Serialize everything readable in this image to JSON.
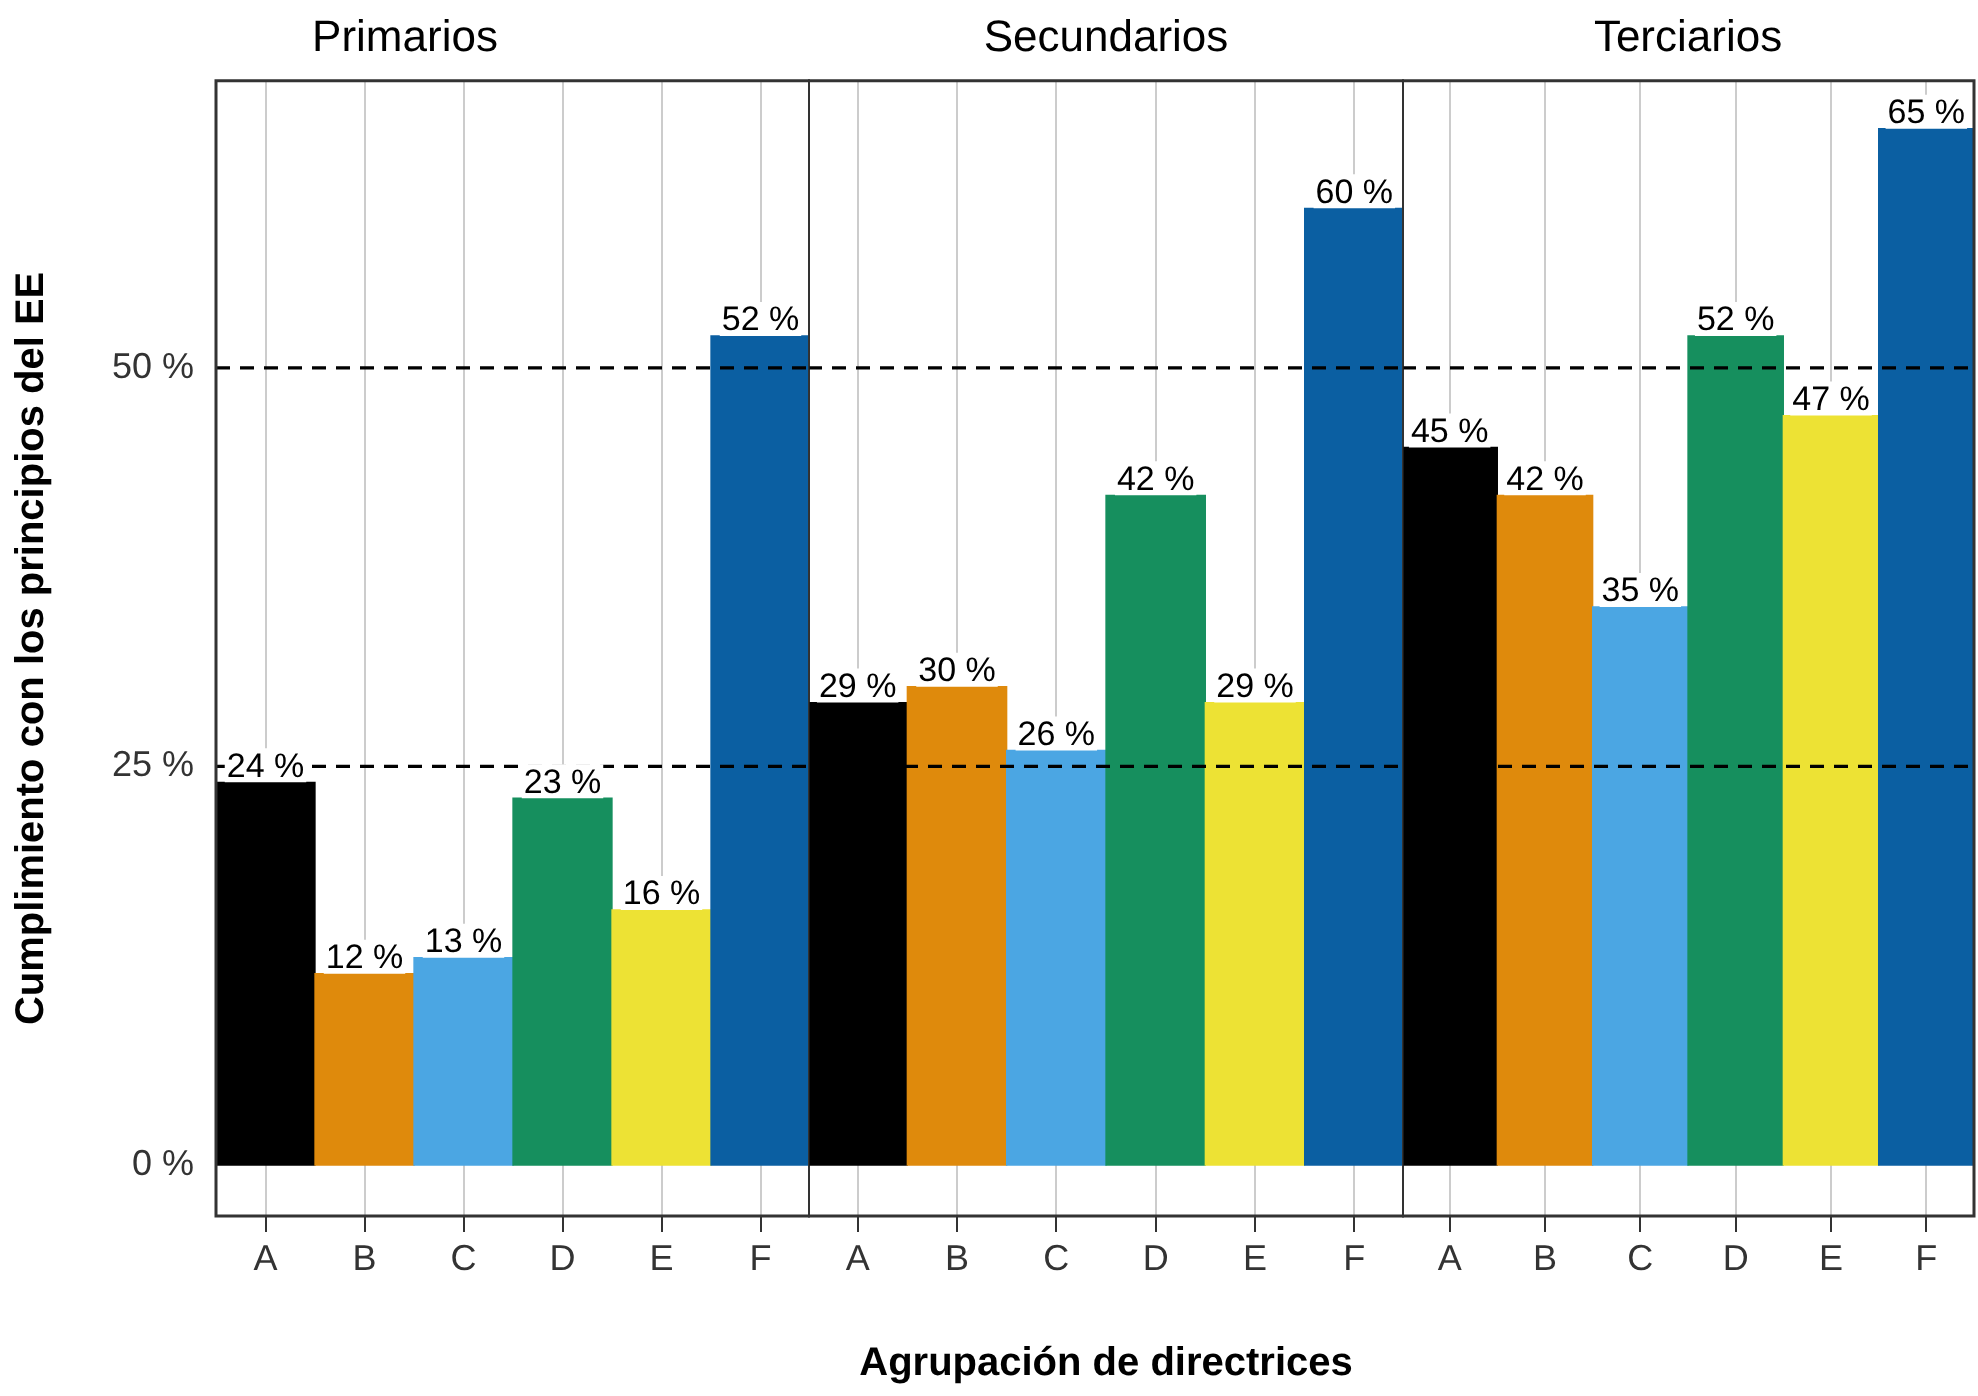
{
  "chart_data": [
    {
      "type": "bar",
      "title": "Primarios",
      "ylabel": "Cumplimiento con los principios del EE",
      "categories": [
        "A",
        "B",
        "C",
        "D",
        "E",
        "F"
      ],
      "values": [
        24,
        12,
        13,
        23,
        16,
        52
      ],
      "colors": [
        "#000000",
        "#df8a0c",
        "#4ba6e3",
        "#168f5e",
        "#ede234",
        "#0b5fa2"
      ],
      "value_labels": [
        "24 %",
        "12 %",
        "13 %",
        "23 %",
        "16 %",
        "52 %"
      ],
      "ylim": [
        -3.2,
        68
      ],
      "yticks": [
        {
          "value": 0,
          "label": "0 %"
        },
        {
          "value": 25,
          "label": "25 %"
        },
        {
          "value": 50,
          "label": "50 %"
        }
      ],
      "ref_lines": [
        {
          "axis": "y",
          "value": 25,
          "line_style": "dashed",
          "color": "#000000"
        },
        {
          "axis": "y",
          "value": 50,
          "line_style": "dashed",
          "color": "#000000"
        }
      ],
      "grid": "x"
    },
    {
      "type": "bar",
      "title": "Secundarios",
      "xlabel": "Agrupación de directrices",
      "categories": [
        "A",
        "B",
        "C",
        "D",
        "E",
        "F"
      ],
      "values": [
        29,
        30,
        26,
        42,
        29,
        60
      ],
      "colors": [
        "#000000",
        "#df8a0c",
        "#4ba6e3",
        "#168f5e",
        "#ede234",
        "#0b5fa2"
      ],
      "value_labels": [
        "29 %",
        "30 %",
        "26 %",
        "42 %",
        "29 %",
        "60 %"
      ],
      "ylim": [
        -3.2,
        68
      ],
      "tick_labels": "x",
      "ref_lines": [
        {
          "axis": "y",
          "value": 25,
          "line_style": "dashed",
          "color": "#000000"
        },
        {
          "axis": "y",
          "value": 50,
          "line_style": "dashed",
          "color": "#000000"
        }
      ],
      "grid": "x"
    },
    {
      "type": "bar",
      "title": "Terciarios",
      "categories": [
        "A",
        "B",
        "C",
        "D",
        "E",
        "F"
      ],
      "values": [
        45,
        42,
        35,
        52,
        47,
        65
      ],
      "colors": [
        "#000000",
        "#df8a0c",
        "#4ba6e3",
        "#168f5e",
        "#ede234",
        "#0b5fa2"
      ],
      "value_labels": [
        "45 %",
        "42 %",
        "35 %",
        "52 %",
        "47 %",
        "65 %"
      ],
      "ylim": [
        -3.2,
        68
      ],
      "tick_labels": "x",
      "ref_lines": [
        {
          "axis": "y",
          "value": 25,
          "line_style": "dashed",
          "color": "#000000"
        },
        {
          "axis": "y",
          "value": 50,
          "line_style": "dashed",
          "color": "#000000"
        }
      ],
      "grid": "x"
    }
  ]
}
